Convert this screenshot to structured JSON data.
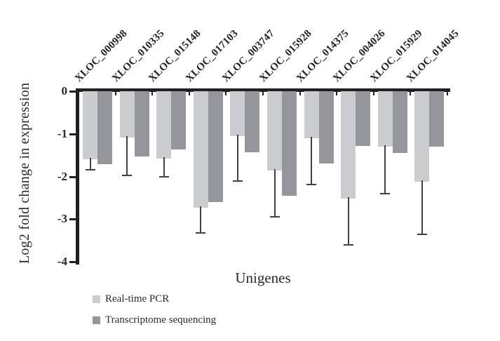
{
  "figure": {
    "background": "#ffffff",
    "axis_color": "#231f20",
    "error_bar_color": "#414042"
  },
  "chart_data": {
    "type": "bar",
    "orientation": "vertical-negative",
    "title": "",
    "xlabel": "Unigenes",
    "ylabel": "Log2 fold change in expression",
    "ylim": [
      -4,
      0
    ],
    "yticks": [
      0,
      -1,
      -2,
      -3,
      -4
    ],
    "ytick_labels": [
      "0",
      "-1",
      "-2",
      "-3",
      "-4"
    ],
    "grid": false,
    "legend_position": "bottom-left",
    "categories": [
      "XLOC_000998",
      "XLOC_010335",
      "XLOC_015148",
      "XLOC_017103",
      "XLOC_003747",
      "XLOC_015928",
      "XLOC_014375",
      "XLOC_004026",
      "XLOC_015929",
      "XLOC_014045"
    ],
    "series": [
      {
        "name": "Real-time PCR",
        "color": "#cbccd0",
        "values": [
          -1.6,
          -1.09,
          -1.58,
          -2.74,
          -1.05,
          -1.86,
          -1.1,
          -2.52,
          -1.3,
          -2.13
        ],
        "errors": [
          0.25,
          0.88,
          0.43,
          0.59,
          1.06,
          1.09,
          1.09,
          1.09,
          1.1,
          1.23
        ]
      },
      {
        "name": "Transcriptome sequencing",
        "color": "#95969b",
        "values": [
          -1.72,
          -1.53,
          -1.36,
          -2.6,
          -1.44,
          -2.46,
          -1.7,
          -1.28,
          -1.45,
          -1.3
        ]
      }
    ]
  }
}
